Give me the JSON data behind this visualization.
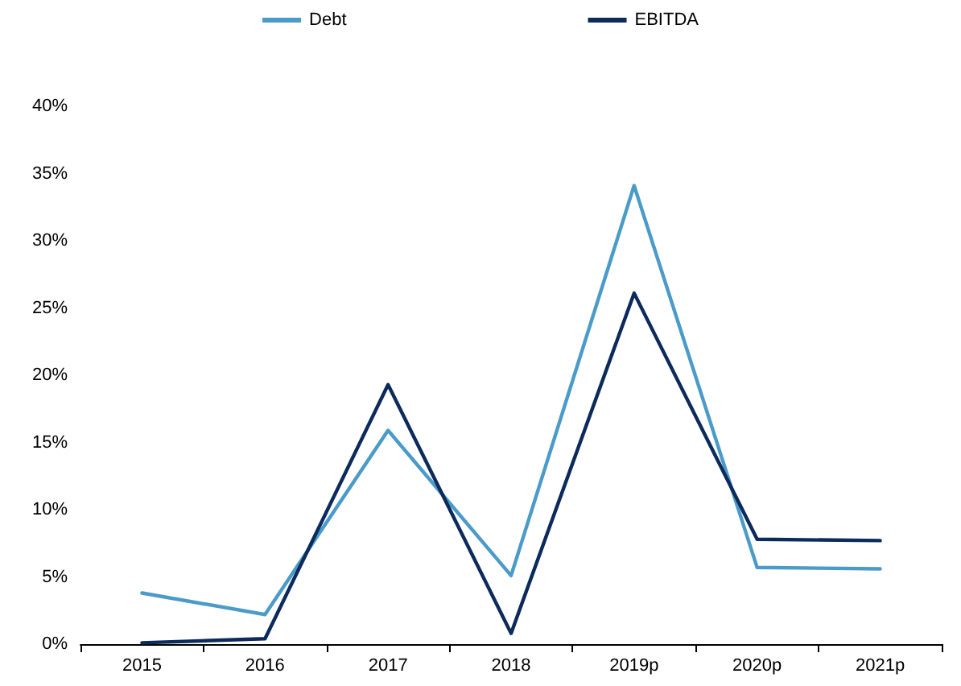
{
  "chart_data": {
    "type": "line",
    "categories": [
      "2015",
      "2016",
      "2017",
      "2018",
      "2019p",
      "2020p",
      "2021p"
    ],
    "series": [
      {
        "name": "Debt",
        "color": "#4b9bc8",
        "values": [
          3.8,
          2.2,
          15.9,
          5.1,
          34.1,
          5.7,
          5.6
        ]
      },
      {
        "name": "EBITDA",
        "color": "#0c2a5b",
        "values": [
          0.1,
          0.4,
          19.3,
          0.8,
          26.1,
          7.8,
          7.7
        ]
      }
    ],
    "ylim": [
      0,
      40
    ],
    "yticks": [
      {
        "value": 0,
        "label": "0%"
      },
      {
        "value": 5,
        "label": "5%"
      },
      {
        "value": 10,
        "label": "10%"
      },
      {
        "value": 15,
        "label": "15%"
      },
      {
        "value": 20,
        "label": "20%"
      },
      {
        "value": 25,
        "label": "25%"
      },
      {
        "value": 30,
        "label": "30%"
      },
      {
        "value": 35,
        "label": "35%"
      },
      {
        "value": 40,
        "label": "40%"
      }
    ],
    "legend": "top",
    "grid": false,
    "marker": "none",
    "line_style": "solid"
  }
}
